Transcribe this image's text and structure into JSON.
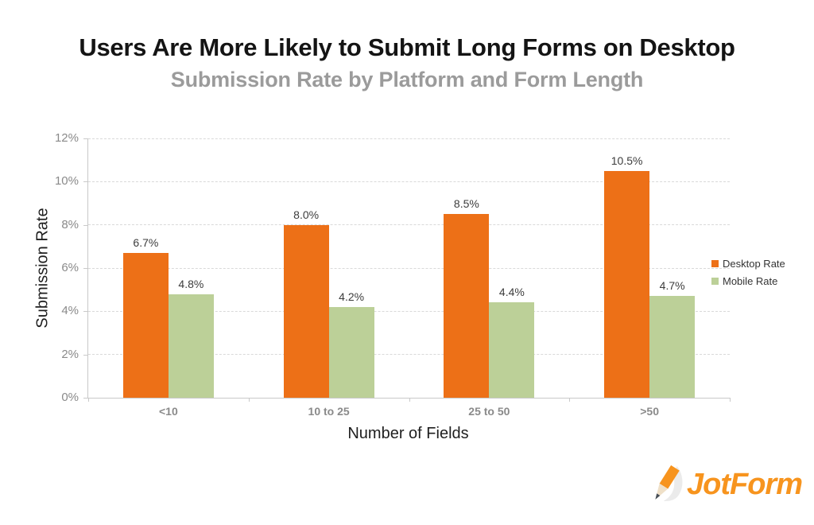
{
  "chart_data": {
    "type": "bar",
    "title": "Users Are More Likely to Submit Long Forms on Desktop",
    "subtitle": "Submission Rate by Platform and Form Length",
    "categories": [
      "<10",
      "10 to 25",
      "25 to 50",
      ">50"
    ],
    "series": [
      {
        "name": "Desktop Rate",
        "color": "#ED7017",
        "values": [
          6.7,
          8.0,
          8.5,
          10.5
        ],
        "value_labels": [
          "6.7%",
          "8.0%",
          "8.5%",
          "10.5%"
        ]
      },
      {
        "name": "Mobile Rate",
        "color": "#BCD098",
        "values": [
          4.8,
          4.2,
          4.4,
          4.7
        ],
        "value_labels": [
          "4.8%",
          "4.2%",
          "4.4%",
          "4.7%"
        ]
      }
    ],
    "xlabel": "Number of Fields",
    "ylabel": "Submission Rate",
    "ylim": [
      0,
      12
    ],
    "yticks": [
      0,
      2,
      4,
      6,
      8,
      10,
      12
    ],
    "ytick_labels": [
      "0%",
      "2%",
      "4%",
      "6%",
      "8%",
      "10%",
      "12%"
    ],
    "grid": "horizontal-dashed",
    "legend_position": "middle-right"
  },
  "colors": {
    "desktop_bar": "#ED7017",
    "mobile_bar": "#BCD098",
    "title_text": "#141414",
    "subtitle_text": "#9B9B9B",
    "axis_text": "#8A8A8A",
    "logo_orange": "#F7941E"
  },
  "branding": {
    "logo_text": "JotForm",
    "logo_icon": "pencil-icon"
  }
}
